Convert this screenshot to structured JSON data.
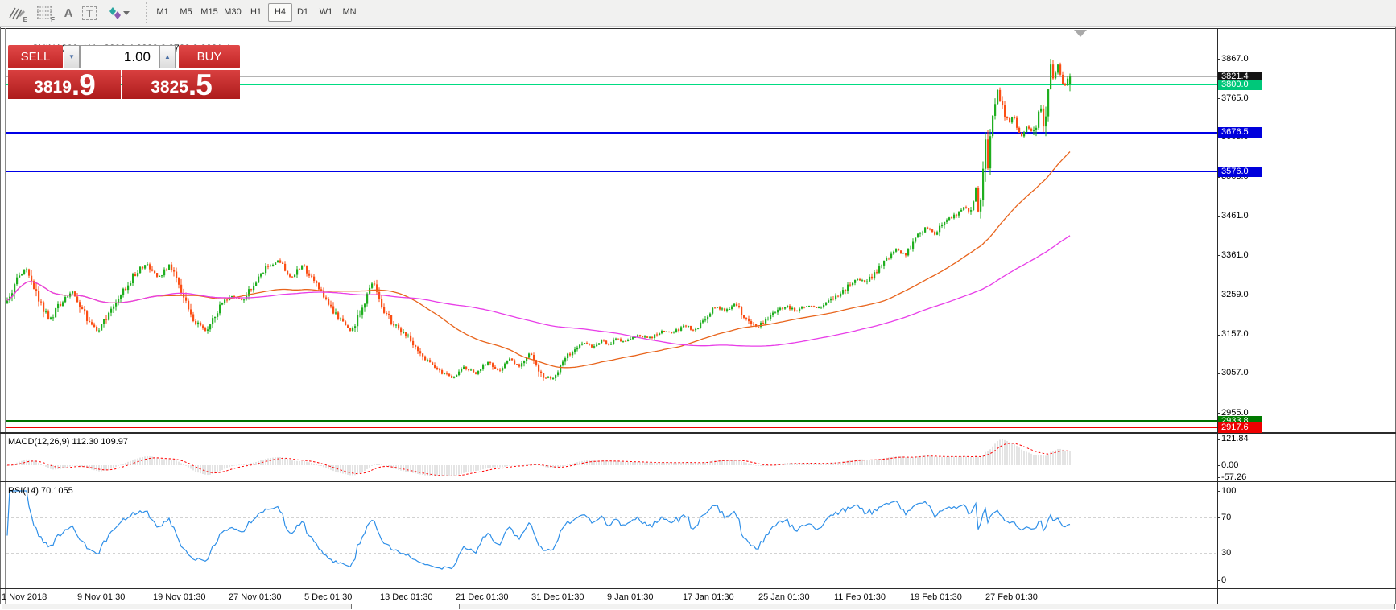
{
  "toolbar": {
    "icons": [
      {
        "name": "indicators-pencil-icon",
        "sub": "E"
      },
      {
        "name": "grid-fibonacci-icon",
        "sub": "F"
      },
      {
        "name": "text-annotation-icon",
        "glyph": "A"
      },
      {
        "name": "text-box-icon",
        "glyph": "T"
      },
      {
        "name": "arrows-objects-icon"
      }
    ],
    "timeframes": [
      "M1",
      "M5",
      "M15",
      "M30",
      "H1",
      "H4",
      "D1",
      "W1",
      "MN"
    ],
    "active_timeframe": "H4"
  },
  "window": {
    "title_arrow": "▲",
    "title": "CHINA300-,H4",
    "ohlc": "3802.4 3828.6 3783.3 3821.4"
  },
  "trade_panel": {
    "sell_label": "SELL",
    "buy_label": "BUY",
    "volume": "1.00",
    "spinner_down": "▼",
    "spinner_up": "▲",
    "sell_price_small": "3819",
    "sell_price_big": ".9",
    "buy_price_small": "3825",
    "buy_price_big": ".5"
  },
  "price_axis": {
    "ticks": [
      [
        "3867.0",
        3867
      ],
      [
        "3765.0",
        3765
      ],
      [
        "3665.0",
        3665
      ],
      [
        "3563.0",
        3563
      ],
      [
        "3461.0",
        3461
      ],
      [
        "3361.0",
        3361
      ],
      [
        "3259.0",
        3259
      ],
      [
        "3157.0",
        3157
      ],
      [
        "3057.0",
        3057
      ],
      [
        "2955.0",
        2955
      ]
    ],
    "badges": [
      [
        "3821.4",
        3821.4,
        "#141414"
      ],
      [
        "3800.0",
        3800.0,
        "#00c87a"
      ],
      [
        "3676.5",
        3676.5,
        "#0000dc"
      ],
      [
        "3576.0",
        3576.0,
        "#0000dc"
      ],
      [
        "2933.8",
        2933.8,
        "#007a00"
      ],
      [
        "2917.6",
        2917.6,
        "#ee0000"
      ]
    ]
  },
  "macd_panel": {
    "label": "MACD(12,26,9) 112.30 109.97",
    "ticks": [
      [
        "121.84",
        121.84
      ],
      [
        "0.00",
        0
      ],
      [
        "-57.26",
        -57.26
      ]
    ]
  },
  "rsi_panel": {
    "label": "RSI(14) 70.1055",
    "ticks": [
      [
        "100",
        100
      ],
      [
        "70",
        70
      ],
      [
        "30",
        30
      ],
      [
        "0",
        0
      ]
    ],
    "levels": [
      70,
      30
    ]
  },
  "chart_data": {
    "type": "candlestick",
    "symbol": "CHINA300-",
    "timeframe": "H4",
    "last": {
      "open": 3802.4,
      "high": 3828.6,
      "low": 3783.3,
      "close": 3821.4
    },
    "bid": 3819.9,
    "ask": 3825.5,
    "ylim": [
      2917,
      3890
    ],
    "hlines": [
      [
        3821.4,
        "#b4b4b4",
        1
      ],
      [
        3800.0,
        "#00dc82",
        2
      ],
      [
        3676.5,
        "#0000e6",
        2
      ],
      [
        3576.0,
        "#0000e6",
        2
      ],
      [
        2933.8,
        "#007000",
        2
      ],
      [
        2917.6,
        "#f00000",
        1
      ]
    ],
    "time_labels": [
      "1 Nov 2018",
      "9 Nov 01:30",
      "19 Nov 01:30",
      "27 Nov 01:30",
      "5 Dec 01:30",
      "13 Dec 01:30",
      "21 Dec 01:30",
      "31 Dec 01:30",
      "9 Jan 01:30",
      "17 Jan 01:30",
      "25 Jan 01:30",
      "11 Feb 01:30",
      "19 Feb 01:30",
      "27 Feb 01:30"
    ],
    "close_path_anchors": [
      [
        8,
        3240
      ],
      [
        20,
        3298
      ],
      [
        32,
        3328
      ],
      [
        45,
        3256
      ],
      [
        60,
        3192
      ],
      [
        75,
        3240
      ],
      [
        90,
        3268
      ],
      [
        105,
        3204
      ],
      [
        120,
        3163
      ],
      [
        135,
        3212
      ],
      [
        150,
        3264
      ],
      [
        165,
        3308
      ],
      [
        180,
        3340
      ],
      [
        195,
        3301
      ],
      [
        210,
        3338
      ],
      [
        225,
        3262
      ],
      [
        240,
        3192
      ],
      [
        255,
        3166
      ],
      [
        270,
        3222
      ],
      [
        285,
        3256
      ],
      [
        300,
        3246
      ],
      [
        315,
        3290
      ],
      [
        330,
        3330
      ],
      [
        345,
        3346
      ],
      [
        360,
        3302
      ],
      [
        375,
        3336
      ],
      [
        390,
        3292
      ],
      [
        405,
        3242
      ],
      [
        420,
        3196
      ],
      [
        435,
        3162
      ],
      [
        450,
        3232
      ],
      [
        462,
        3292
      ],
      [
        472,
        3230
      ],
      [
        485,
        3192
      ],
      [
        500,
        3162
      ],
      [
        515,
        3126
      ],
      [
        530,
        3086
      ],
      [
        545,
        3062
      ],
      [
        560,
        3046
      ],
      [
        575,
        3072
      ],
      [
        590,
        3056
      ],
      [
        605,
        3086
      ],
      [
        618,
        3062
      ],
      [
        632,
        3096
      ],
      [
        645,
        3072
      ],
      [
        658,
        3112
      ],
      [
        672,
        3052
      ],
      [
        685,
        3042
      ],
      [
        695,
        3072
      ],
      [
        705,
        3106
      ],
      [
        715,
        3122
      ],
      [
        725,
        3136
      ],
      [
        735,
        3122
      ],
      [
        745,
        3142
      ],
      [
        755,
        3132
      ],
      [
        765,
        3146
      ],
      [
        775,
        3136
      ],
      [
        790,
        3156
      ],
      [
        805,
        3146
      ],
      [
        820,
        3166
      ],
      [
        835,
        3161
      ],
      [
        850,
        3181
      ],
      [
        862,
        3166
      ],
      [
        875,
        3201
      ],
      [
        888,
        3231
      ],
      [
        900,
        3216
      ],
      [
        912,
        3236
      ],
      [
        925,
        3196
      ],
      [
        938,
        3176
      ],
      [
        950,
        3191
      ],
      [
        962,
        3216
      ],
      [
        975,
        3231
      ],
      [
        988,
        3216
      ],
      [
        1000,
        3231
      ],
      [
        1012,
        3226
      ],
      [
        1025,
        3236
      ],
      [
        1038,
        3256
      ],
      [
        1050,
        3276
      ],
      [
        1062,
        3301
      ],
      [
        1075,
        3291
      ],
      [
        1088,
        3321
      ],
      [
        1100,
        3351
      ],
      [
        1112,
        3376
      ],
      [
        1124,
        3361
      ],
      [
        1136,
        3401
      ],
      [
        1148,
        3431
      ],
      [
        1160,
        3416
      ],
      [
        1172,
        3451
      ],
      [
        1184,
        3461
      ],
      [
        1196,
        3486
      ],
      [
        1205,
        3471
      ],
      [
        1211,
        3531
      ],
      [
        1215,
        3446
      ],
      [
        1219,
        3561
      ],
      [
        1223,
        3660
      ],
      [
        1226,
        3581
      ],
      [
        1230,
        3701
      ],
      [
        1234,
        3746
      ],
      [
        1238,
        3786
      ],
      [
        1243,
        3746
      ],
      [
        1248,
        3716
      ],
      [
        1253,
        3701
      ],
      [
        1258,
        3721
      ],
      [
        1263,
        3691
      ],
      [
        1268,
        3666
      ],
      [
        1274,
        3691
      ],
      [
        1280,
        3681
      ],
      [
        1286,
        3696
      ],
      [
        1291,
        3756
      ],
      [
        1296,
        3681
      ],
      [
        1301,
        3791
      ],
      [
        1305,
        3868
      ],
      [
        1308,
        3791
      ],
      [
        1312,
        3864
      ],
      [
        1316,
        3821
      ],
      [
        1320,
        3791
      ],
      [
        1324,
        3809
      ],
      [
        1328,
        3821.4
      ]
    ],
    "up_color": "#1fae1f",
    "down_color": "#fb4e14",
    "ma_fast": {
      "period": 60,
      "color": "#e8641c"
    },
    "ma_slow": {
      "period": 150,
      "color": "#e83ee8"
    },
    "macd": {
      "hist_color": "#c9c9c9",
      "signal_color": "#ff0000"
    },
    "rsi": {
      "period": 14,
      "color": "#2e8fe8",
      "level_line_color": "#c4c4c4"
    }
  },
  "colors": {
    "toolbar_bg": "#f1f1f0",
    "panel_red": "#c22020",
    "frame": "#2b2b2b"
  }
}
